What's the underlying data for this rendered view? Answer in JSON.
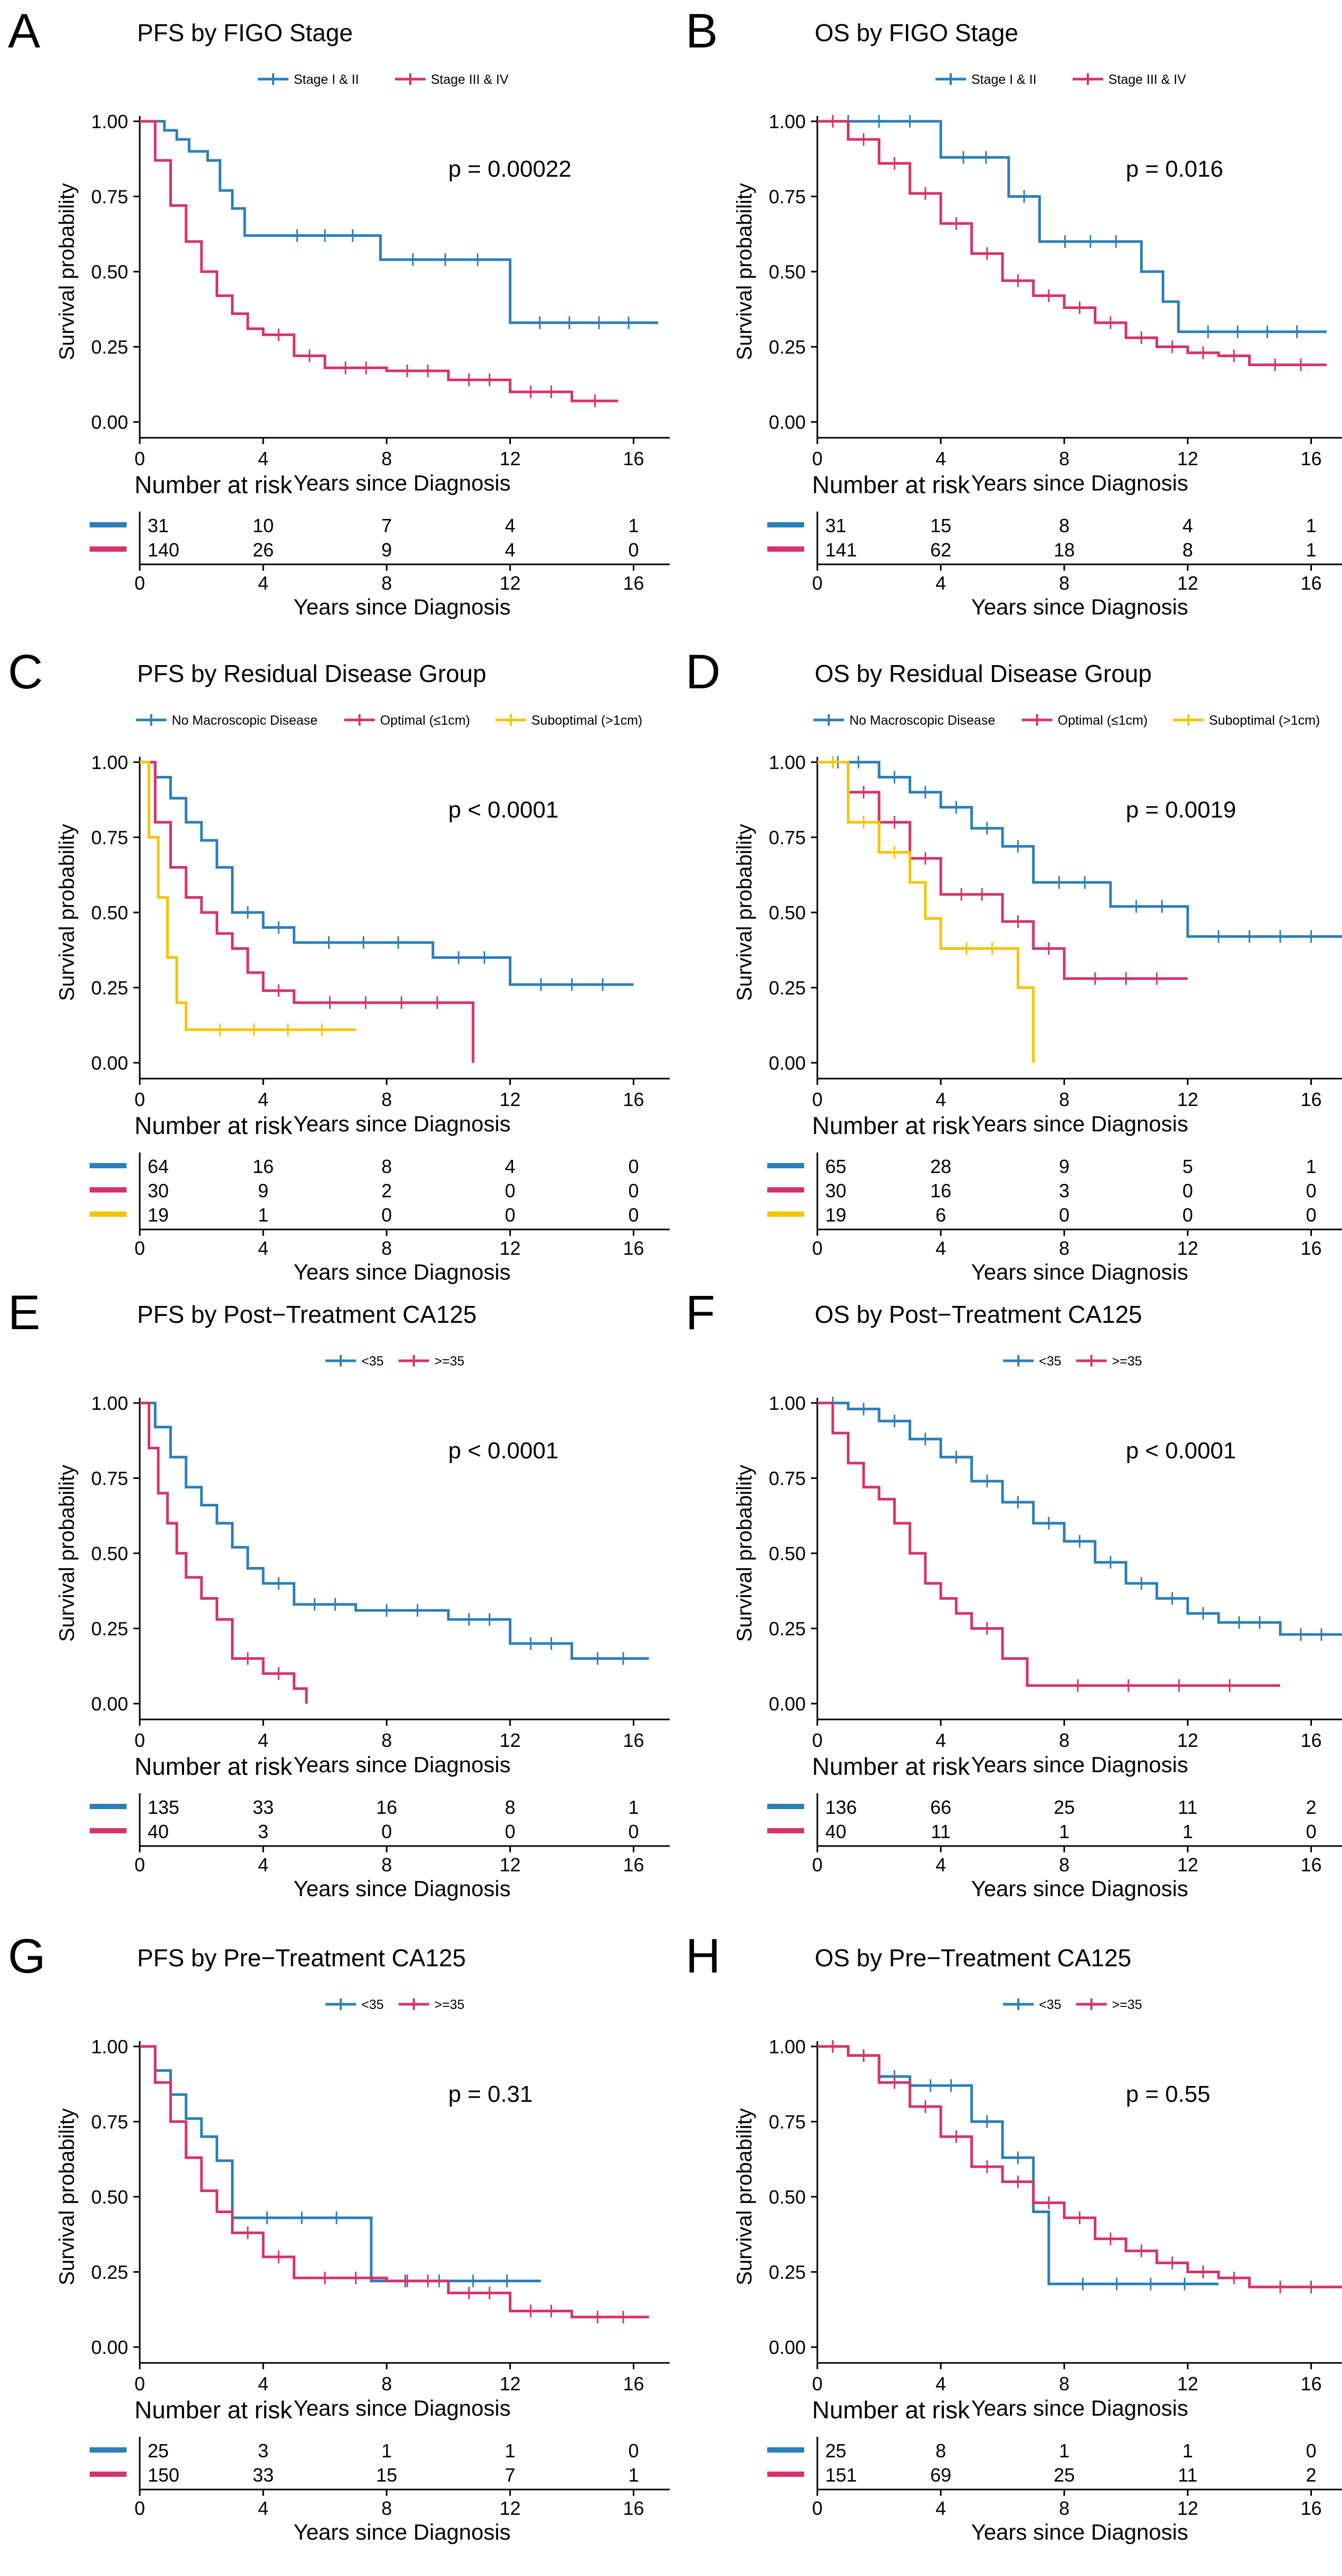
{
  "colors": {
    "blue": "#2c7fb8",
    "red": "#d6336c",
    "yellow": "#f5c400",
    "axis": "#000000"
  },
  "common": {
    "ylabel": "Survival probability",
    "xlabel": "Years since Diagnosis",
    "risk_title": "Number at risk",
    "x_ticks": [
      "0",
      "4",
      "8",
      "12",
      "16"
    ],
    "y_ticks": [
      "0.00",
      "0.25",
      "0.50",
      "0.75",
      "1.00"
    ]
  },
  "chart_data": [
    {
      "panel_letter": "A",
      "title": "PFS by FIGO Stage",
      "type": "line",
      "xlim": [
        0,
        17
      ],
      "ylim": [
        0,
        1
      ],
      "p_value": "p = 0.00022",
      "legend": [
        {
          "label": "Stage I & II",
          "color": "blue"
        },
        {
          "label": "Stage III & IV",
          "color": "red"
        }
      ],
      "series": [
        {
          "name": "Stage I & II",
          "color": "blue",
          "x": [
            0,
            0.8,
            1.2,
            1.6,
            2.2,
            2.6,
            3.0,
            3.4,
            4.2,
            7.8,
            12.0,
            16.8
          ],
          "y": [
            1.0,
            0.97,
            0.94,
            0.9,
            0.87,
            0.77,
            0.71,
            0.62,
            0.62,
            0.54,
            0.33,
            0.33
          ]
        },
        {
          "name": "Stage III & IV",
          "color": "red",
          "x": [
            0,
            0.5,
            1.0,
            1.5,
            2.0,
            2.5,
            3.0,
            3.5,
            4.0,
            5.0,
            6.0,
            8.0,
            10.0,
            12.0,
            14.0,
            15.5
          ],
          "y": [
            1.0,
            0.87,
            0.72,
            0.6,
            0.5,
            0.42,
            0.36,
            0.31,
            0.29,
            0.22,
            0.18,
            0.17,
            0.14,
            0.1,
            0.07,
            0.07
          ]
        }
      ],
      "risk_table": [
        {
          "color": "blue",
          "values": [
            "31",
            "10",
            "7",
            "4",
            "1"
          ]
        },
        {
          "color": "red",
          "values": [
            "140",
            "26",
            "9",
            "4",
            "0"
          ]
        }
      ]
    },
    {
      "panel_letter": "B",
      "title": "OS by FIGO Stage",
      "type": "line",
      "xlim": [
        0,
        17
      ],
      "ylim": [
        0,
        1
      ],
      "p_value": "p = 0.016",
      "legend": [
        {
          "label": "Stage I & II",
          "color": "blue"
        },
        {
          "label": "Stage III & IV",
          "color": "red"
        }
      ],
      "series": [
        {
          "name": "Stage I & II",
          "color": "blue",
          "x": [
            0,
            4,
            6.2,
            7.2,
            10.5,
            11.2,
            11.7,
            16.5
          ],
          "y": [
            1.0,
            0.88,
            0.75,
            0.6,
            0.5,
            0.4,
            0.3,
            0.3
          ]
        },
        {
          "name": "Stage III & IV",
          "color": "red",
          "x": [
            0,
            1,
            2,
            3,
            4,
            5,
            6,
            7,
            8,
            9,
            10,
            11,
            12,
            13,
            14,
            16.5
          ],
          "y": [
            1.0,
            0.94,
            0.86,
            0.76,
            0.66,
            0.56,
            0.47,
            0.42,
            0.38,
            0.33,
            0.28,
            0.25,
            0.23,
            0.22,
            0.19,
            0.19
          ]
        }
      ],
      "risk_table": [
        {
          "color": "blue",
          "values": [
            "31",
            "15",
            "8",
            "4",
            "1"
          ]
        },
        {
          "color": "red",
          "values": [
            "141",
            "62",
            "18",
            "8",
            "1"
          ]
        }
      ]
    },
    {
      "panel_letter": "C",
      "title": "PFS by Residual Disease Group",
      "type": "line",
      "xlim": [
        0,
        17
      ],
      "ylim": [
        0,
        1
      ],
      "p_value": "p < 0.0001",
      "legend": [
        {
          "label": "No Macroscopic Disease",
          "color": "blue"
        },
        {
          "label": "Optimal (≤1cm)",
          "color": "red"
        },
        {
          "label": "Suboptimal (>1cm)",
          "color": "yellow"
        }
      ],
      "series": [
        {
          "name": "No Macroscopic Disease",
          "color": "blue",
          "x": [
            0,
            0.5,
            1.0,
            1.5,
            2.0,
            2.5,
            3.0,
            4.0,
            5.0,
            9.5,
            12.0,
            16.0
          ],
          "y": [
            1.0,
            0.95,
            0.88,
            0.8,
            0.74,
            0.65,
            0.5,
            0.45,
            0.4,
            0.35,
            0.26,
            0.26
          ]
        },
        {
          "name": "Optimal (≤1cm)",
          "color": "red",
          "x": [
            0,
            0.5,
            1.0,
            1.5,
            2.0,
            2.5,
            3.0,
            3.5,
            4.0,
            5.0,
            10.8
          ],
          "y": [
            1.0,
            0.8,
            0.65,
            0.55,
            0.5,
            0.43,
            0.38,
            0.3,
            0.24,
            0.2,
            0.0
          ]
        },
        {
          "name": "Suboptimal (>1cm)",
          "color": "yellow",
          "x": [
            0,
            0.3,
            0.6,
            0.9,
            1.2,
            1.5,
            7.0
          ],
          "y": [
            1.0,
            0.75,
            0.55,
            0.35,
            0.2,
            0.11,
            0.11
          ]
        }
      ],
      "risk_table": [
        {
          "color": "blue",
          "values": [
            "64",
            "16",
            "8",
            "4",
            "0"
          ]
        },
        {
          "color": "red",
          "values": [
            "30",
            "9",
            "2",
            "0",
            "0"
          ]
        },
        {
          "color": "yellow",
          "values": [
            "19",
            "1",
            "0",
            "0",
            "0"
          ]
        }
      ]
    },
    {
      "panel_letter": "D",
      "title": "OS by Residual Disease Group",
      "type": "line",
      "xlim": [
        0,
        17
      ],
      "ylim": [
        0,
        1
      ],
      "p_value": "p = 0.0019",
      "legend": [
        {
          "label": "No Macroscopic Disease",
          "color": "blue"
        },
        {
          "label": "Optimal (≤1cm)",
          "color": "red"
        },
        {
          "label": "Suboptimal (>1cm)",
          "color": "yellow"
        }
      ],
      "series": [
        {
          "name": "No Macroscopic Disease",
          "color": "blue",
          "x": [
            0,
            2,
            3,
            4,
            5,
            6,
            7,
            9.5,
            12,
            17
          ],
          "y": [
            1.0,
            0.95,
            0.9,
            0.85,
            0.78,
            0.72,
            0.6,
            0.52,
            0.42,
            0.42
          ]
        },
        {
          "name": "Optimal (≤1cm)",
          "color": "red",
          "x": [
            0,
            1,
            2,
            3,
            4,
            6,
            7,
            8,
            12
          ],
          "y": [
            1.0,
            0.9,
            0.8,
            0.68,
            0.56,
            0.47,
            0.38,
            0.28,
            0.28
          ]
        },
        {
          "name": "Suboptimal (>1cm)",
          "color": "yellow",
          "x": [
            0,
            1,
            2,
            3,
            3.5,
            4,
            6.5,
            7
          ],
          "y": [
            1.0,
            0.8,
            0.7,
            0.6,
            0.48,
            0.38,
            0.25,
            0.0
          ]
        }
      ],
      "risk_table": [
        {
          "color": "blue",
          "values": [
            "65",
            "28",
            "9",
            "5",
            "1"
          ]
        },
        {
          "color": "red",
          "values": [
            "30",
            "16",
            "3",
            "0",
            "0"
          ]
        },
        {
          "color": "yellow",
          "values": [
            "19",
            "6",
            "0",
            "0",
            "0"
          ]
        }
      ]
    },
    {
      "panel_letter": "E",
      "title": "PFS by Post−Treatment CA125",
      "type": "line",
      "xlim": [
        0,
        17
      ],
      "ylim": [
        0,
        1
      ],
      "p_value": "p < 0.0001",
      "legend": [
        {
          "label": "<35",
          "color": "blue"
        },
        {
          "label": ">=35",
          "color": "red"
        }
      ],
      "series": [
        {
          "name": "<35",
          "color": "blue",
          "x": [
            0,
            0.5,
            1.0,
            1.5,
            2.0,
            2.5,
            3.0,
            3.5,
            4.0,
            5.0,
            7.0,
            10.0,
            12.0,
            14.0,
            16.5
          ],
          "y": [
            1.0,
            0.92,
            0.82,
            0.72,
            0.66,
            0.6,
            0.52,
            0.45,
            0.4,
            0.33,
            0.31,
            0.28,
            0.2,
            0.15,
            0.15
          ]
        },
        {
          "name": ">=35",
          "color": "red",
          "x": [
            0,
            0.3,
            0.6,
            0.9,
            1.2,
            1.5,
            2.0,
            2.5,
            3.0,
            4.0,
            5.0,
            5.4
          ],
          "y": [
            1.0,
            0.85,
            0.7,
            0.6,
            0.5,
            0.42,
            0.35,
            0.28,
            0.15,
            0.1,
            0.05,
            0.0
          ]
        }
      ],
      "risk_table": [
        {
          "color": "blue",
          "values": [
            "135",
            "33",
            "16",
            "8",
            "1"
          ]
        },
        {
          "color": "red",
          "values": [
            "40",
            "3",
            "0",
            "0",
            "0"
          ]
        }
      ]
    },
    {
      "panel_letter": "F",
      "title": "OS by Post−Treatment CA125",
      "type": "line",
      "xlim": [
        0,
        17
      ],
      "ylim": [
        0,
        1
      ],
      "p_value": "p < 0.0001",
      "legend": [
        {
          "label": "<35",
          "color": "blue"
        },
        {
          "label": ">=35",
          "color": "red"
        }
      ],
      "series": [
        {
          "name": "<35",
          "color": "blue",
          "x": [
            0,
            1,
            2,
            3,
            4,
            5,
            6,
            7,
            8,
            9,
            10,
            11,
            12,
            13,
            15,
            17
          ],
          "y": [
            1.0,
            0.98,
            0.94,
            0.88,
            0.82,
            0.74,
            0.67,
            0.6,
            0.54,
            0.47,
            0.4,
            0.35,
            0.3,
            0.27,
            0.23,
            0.23
          ]
        },
        {
          "name": ">=35",
          "color": "red",
          "x": [
            0,
            0.5,
            1,
            1.5,
            2,
            2.5,
            3,
            3.5,
            4,
            4.5,
            5,
            6,
            6.8,
            15
          ],
          "y": [
            1.0,
            0.9,
            0.8,
            0.72,
            0.68,
            0.6,
            0.5,
            0.4,
            0.35,
            0.3,
            0.25,
            0.15,
            0.06,
            0.06
          ]
        }
      ],
      "risk_table": [
        {
          "color": "blue",
          "values": [
            "136",
            "66",
            "25",
            "11",
            "2"
          ]
        },
        {
          "color": "red",
          "values": [
            "40",
            "11",
            "1",
            "1",
            "0"
          ]
        }
      ]
    },
    {
      "panel_letter": "G",
      "title": "PFS by Pre−Treatment CA125",
      "type": "line",
      "xlim": [
        0,
        17
      ],
      "ylim": [
        0,
        1
      ],
      "p_value": "p = 0.31",
      "legend": [
        {
          "label": "<35",
          "color": "blue"
        },
        {
          "label": ">=35",
          "color": "red"
        }
      ],
      "series": [
        {
          "name": "<35",
          "color": "blue",
          "x": [
            0,
            0.5,
            1.0,
            1.5,
            2.0,
            2.5,
            3.0,
            7.5,
            13.0
          ],
          "y": [
            1.0,
            0.92,
            0.84,
            0.76,
            0.7,
            0.62,
            0.43,
            0.22,
            0.22
          ]
        },
        {
          "name": ">=35",
          "color": "red",
          "x": [
            0,
            0.5,
            1.0,
            1.5,
            2.0,
            2.5,
            3.0,
            4.0,
            5.0,
            8.0,
            10.0,
            12.0,
            14.0,
            16.5
          ],
          "y": [
            1.0,
            0.88,
            0.75,
            0.63,
            0.52,
            0.45,
            0.38,
            0.3,
            0.23,
            0.22,
            0.18,
            0.12,
            0.1,
            0.1
          ]
        }
      ],
      "risk_table": [
        {
          "color": "blue",
          "values": [
            "25",
            "3",
            "1",
            "1",
            "0"
          ]
        },
        {
          "color": "red",
          "values": [
            "150",
            "33",
            "15",
            "7",
            "1"
          ]
        }
      ]
    },
    {
      "panel_letter": "H",
      "title": "OS by Pre−Treatment CA125",
      "type": "line",
      "xlim": [
        0,
        17
      ],
      "ylim": [
        0,
        1
      ],
      "p_value": "p = 0.55",
      "legend": [
        {
          "label": "<35",
          "color": "blue"
        },
        {
          "label": ">=35",
          "color": "red"
        }
      ],
      "series": [
        {
          "name": "<35",
          "color": "blue",
          "x": [
            0,
            1,
            2,
            3,
            5,
            6,
            7,
            7.5,
            13
          ],
          "y": [
            1.0,
            0.97,
            0.9,
            0.87,
            0.75,
            0.63,
            0.45,
            0.21,
            0.21
          ]
        },
        {
          "name": ">=35",
          "color": "red",
          "x": [
            0,
            1,
            2,
            3,
            4,
            5,
            6,
            7,
            8,
            9,
            10,
            11,
            12,
            13,
            14,
            17
          ],
          "y": [
            1.0,
            0.97,
            0.88,
            0.8,
            0.7,
            0.6,
            0.55,
            0.48,
            0.43,
            0.36,
            0.32,
            0.28,
            0.25,
            0.23,
            0.2,
            0.2
          ]
        }
      ],
      "risk_table": [
        {
          "color": "blue",
          "values": [
            "25",
            "8",
            "1",
            "1",
            "0"
          ]
        },
        {
          "color": "red",
          "values": [
            "151",
            "69",
            "25",
            "11",
            "2"
          ]
        }
      ]
    }
  ]
}
